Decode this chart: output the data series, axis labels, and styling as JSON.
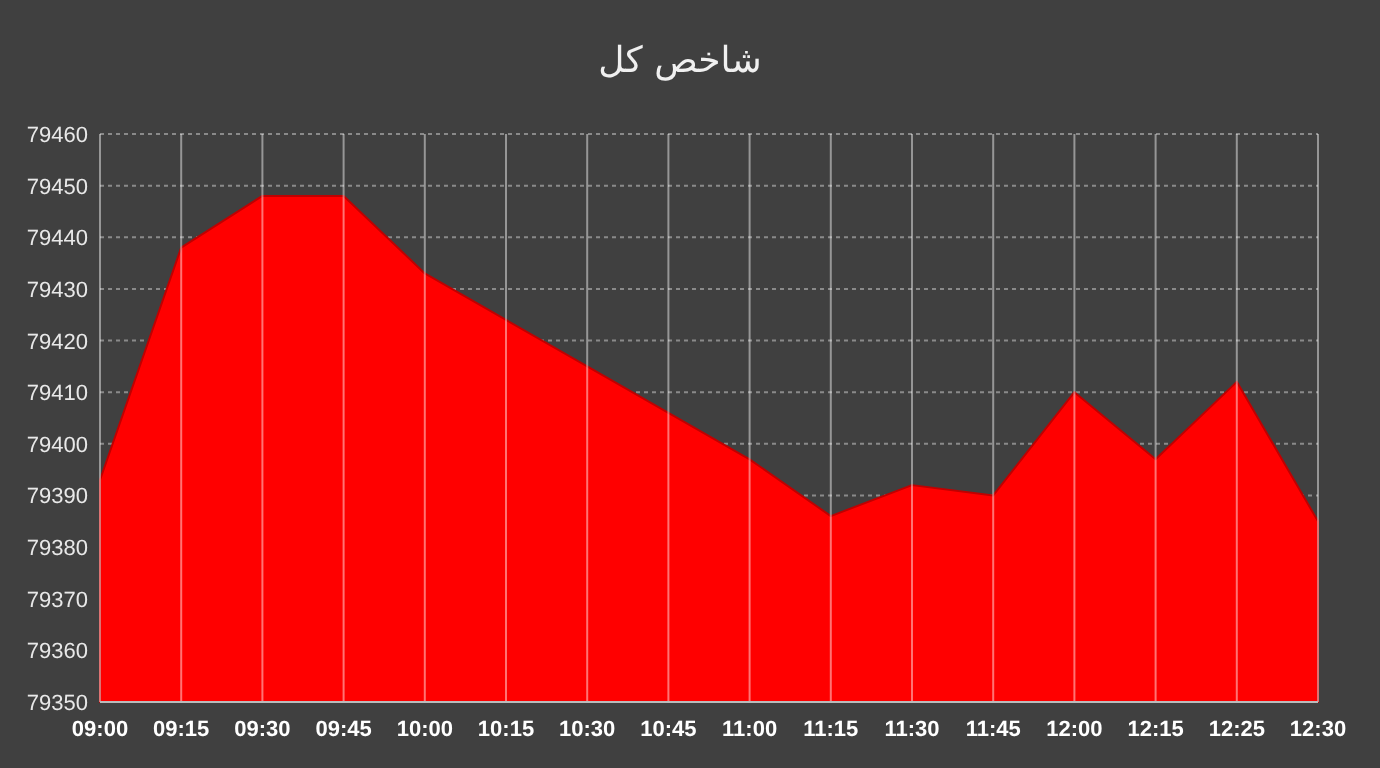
{
  "chart_data": {
    "type": "area",
    "title": "شاخص کل",
    "categories": [
      "09:00",
      "09:15",
      "09:30",
      "09:45",
      "10:00",
      "10:15",
      "10:30",
      "10:45",
      "11:00",
      "11:15",
      "11:30",
      "11:45",
      "12:00",
      "12:15",
      "12:25",
      "12:30"
    ],
    "series": [
      {
        "color": "#ff0000",
        "values": [
          79393,
          79438,
          79448,
          79448,
          79433,
          79424,
          79415,
          79406,
          79397,
          79386,
          79392,
          79390,
          79410,
          79397,
          79412,
          79385
        ]
      }
    ],
    "ylim": [
      79350,
      79460
    ],
    "yticks": [
      79350,
      79360,
      79370,
      79380,
      79390,
      79400,
      79410,
      79420,
      79430,
      79440,
      79450,
      79460
    ],
    "grid": true
  }
}
